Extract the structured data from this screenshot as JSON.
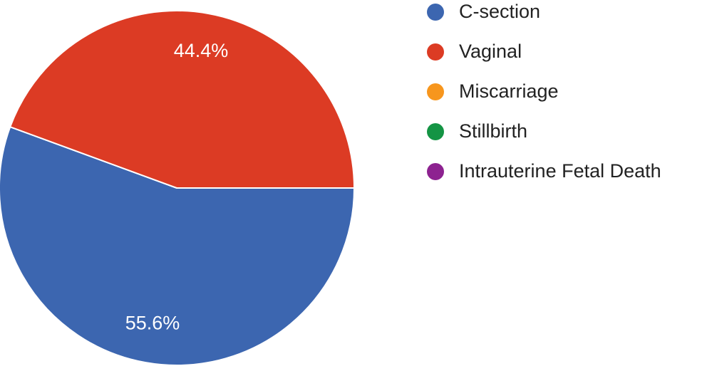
{
  "chart_data": {
    "type": "pie",
    "categories": [
      "C-section",
      "Vaginal",
      "Miscarriage",
      "Stillbirth",
      "Intrauterine Fetal Death"
    ],
    "values": [
      55.6,
      44.4,
      0,
      0,
      0
    ],
    "value_labels": [
      "55.6%",
      "44.4%",
      null,
      null,
      null
    ],
    "colors": [
      "#3c66b0",
      "#dc3b24",
      "#f7961d",
      "#149444",
      "#8d2290"
    ],
    "legend": "right"
  }
}
